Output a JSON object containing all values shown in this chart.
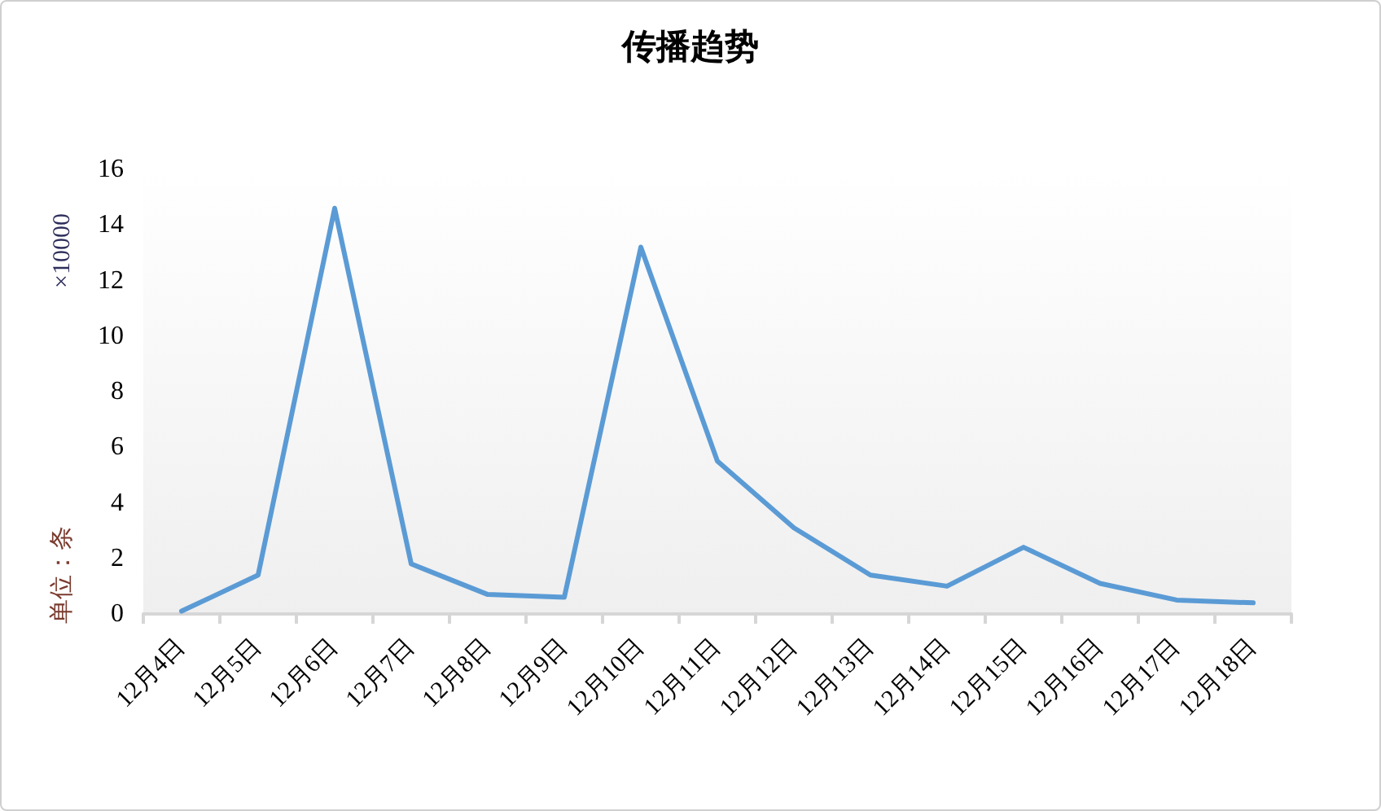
{
  "chart_data": {
    "type": "line",
    "title": "传播趋势",
    "ylabel": "单位：条",
    "annotations": [
      "×10000"
    ],
    "categories": [
      "12月4日",
      "12月5日",
      "12月6日",
      "12月7日",
      "12月8日",
      "12月9日",
      "12月10日",
      "12月11日",
      "12月12日",
      "12月13日",
      "12月14日",
      "12月15日",
      "12月16日",
      "12月17日",
      "12月18日"
    ],
    "series": [
      {
        "color": "#5b9bd5",
        "values": [
          0.1,
          1.4,
          14.6,
          1.8,
          0.7,
          0.6,
          13.2,
          5.5,
          3.1,
          1.4,
          1.0,
          2.4,
          1.1,
          0.5,
          0.4
        ]
      }
    ],
    "ylim": [
      0,
      16
    ],
    "yticks": [
      0,
      2,
      4,
      6,
      8,
      10,
      12,
      14,
      16
    ],
    "grid": false,
    "marker": "none",
    "line_style": "solid"
  }
}
